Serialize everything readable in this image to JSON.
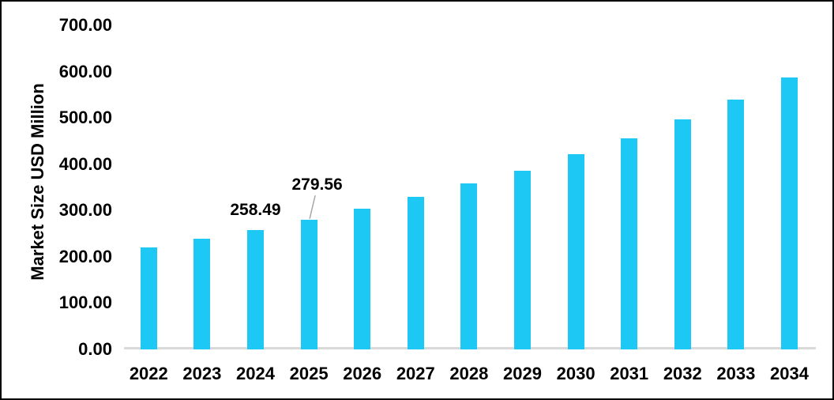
{
  "figure": {
    "background": "#ffffff",
    "border_color": "#000000"
  },
  "chart_data": {
    "type": "bar",
    "title": "",
    "xlabel": "",
    "ylabel": "Market Size USD Million",
    "ylim": [
      0,
      700
    ],
    "y_tick_interval": 100,
    "y_ticks": [
      "0.00",
      "100.00",
      "200.00",
      "300.00",
      "400.00",
      "500.00",
      "600.00",
      "700.00"
    ],
    "categories": [
      "2022",
      "2023",
      "2024",
      "2025",
      "2026",
      "2027",
      "2028",
      "2029",
      "2030",
      "2031",
      "2032",
      "2033",
      "2034"
    ],
    "values": [
      221,
      239,
      258.49,
      279.56,
      304,
      330,
      358,
      386,
      421,
      456,
      497,
      539,
      587
    ],
    "annotations": [
      {
        "category": "2024",
        "value_label": "258.49",
        "leader_line": false
      },
      {
        "category": "2025",
        "value_label": "279.56",
        "leader_line": true
      }
    ],
    "legend": null,
    "grid": false,
    "bar_color": "#1EC8F5",
    "axis_line_color": "#D9D9D9",
    "leader_line_color": "#A6A6A6",
    "text_color": "#000000"
  }
}
